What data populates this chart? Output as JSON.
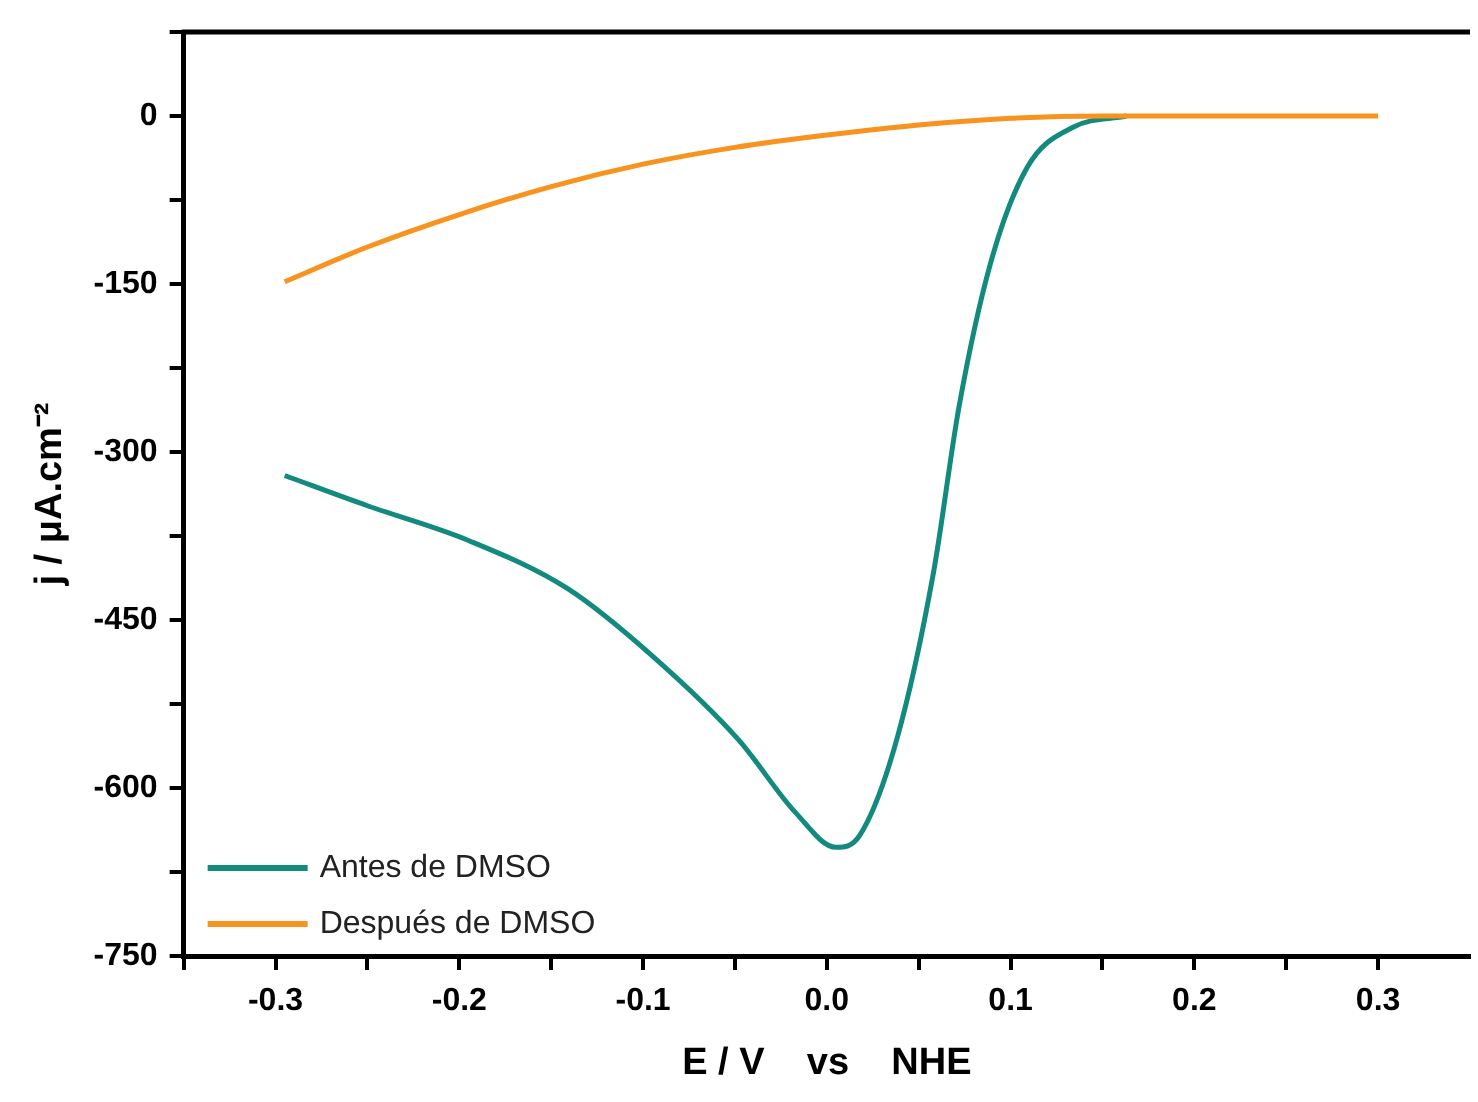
{
  "chart_data": {
    "type": "line",
    "xlabel": "E / V    vs    NHE",
    "ylabel": "j / μA.cm⁻²",
    "xlim": [
      -0.35,
      0.35
    ],
    "ylim": [
      -750,
      75
    ],
    "xticks": [
      {
        "value": -0.35,
        "label": null
      },
      -0.3,
      {
        "value": -0.25,
        "label": null
      },
      -0.2,
      {
        "value": -0.15,
        "label": null
      },
      -0.1,
      {
        "value": -0.05,
        "label": null
      },
      {
        "value": 0,
        "label": "0.0"
      },
      {
        "value": 0.05,
        "label": null
      },
      0.1,
      {
        "value": 0.15,
        "label": null
      },
      0.2,
      {
        "value": 0.25,
        "label": null
      },
      0.3
    ],
    "yticks": [
      {
        "value": 75,
        "label": null
      },
      0,
      {
        "value": -75,
        "label": null
      },
      -150,
      {
        "value": -225,
        "label": null
      },
      -300,
      {
        "value": -375,
        "label": null
      },
      -450,
      {
        "value": -525,
        "label": null
      },
      -600,
      {
        "value": -675,
        "label": null
      },
      -750
    ],
    "grid": false,
    "legend": "bottom left",
    "marker": "none",
    "line_style": "solid",
    "series": [
      {
        "name": "Antes de DMSO",
        "color": "#138a7e",
        "x": [
          -0.295,
          -0.25,
          -0.195,
          -0.141,
          -0.095,
          -0.048,
          -0.017,
          0.005,
          0.018,
          0.038,
          0.058,
          0.072,
          0.089,
          0.109,
          0.134,
          0.163
        ],
        "values": [
          -321,
          -348,
          -379,
          -422,
          -482,
          -557,
          -622,
          -653,
          -642,
          -557,
          -408,
          -259,
          -132,
          -46,
          -10,
          0
        ]
      },
      {
        "name": "Después de DMSO",
        "color": "#f7931e",
        "x": [
          -0.295,
          -0.25,
          -0.2,
          -0.15,
          -0.1,
          -0.05,
          0,
          0.05,
          0.1,
          0.15,
          0.2,
          0.25,
          0.3
        ],
        "values": [
          -148,
          -117,
          -88,
          -63,
          -43,
          -28,
          -17,
          -8,
          -2,
          0,
          0,
          0,
          0
        ]
      }
    ]
  }
}
